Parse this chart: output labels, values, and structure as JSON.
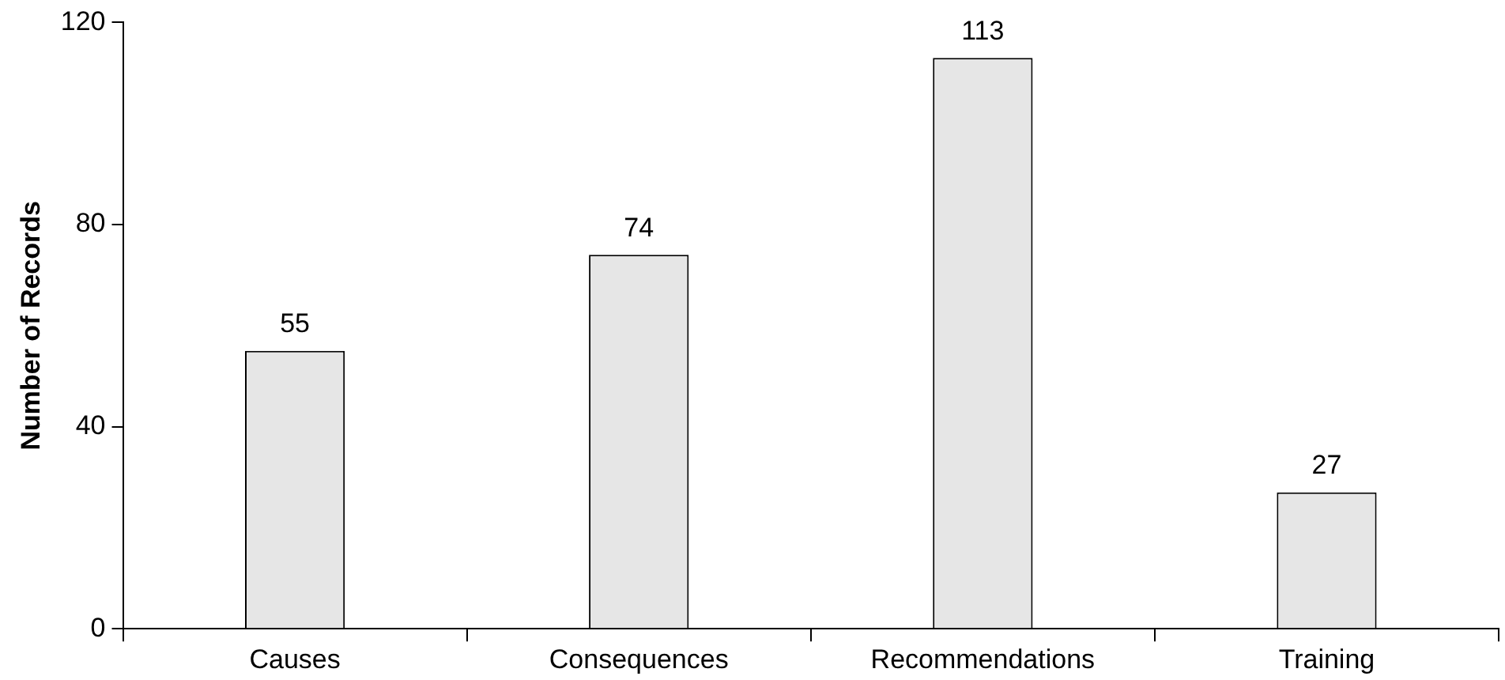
{
  "chart_data": {
    "type": "bar",
    "ylabel": "Number of Records",
    "categories": [
      "Causes",
      "Consequences",
      "Recommendations",
      "Training"
    ],
    "values": [
      55,
      74,
      113,
      27
    ],
    "color": "#e6e6e6",
    "ylim": [
      0,
      120
    ],
    "yticks": [
      0,
      40,
      80,
      120
    ],
    "grid": false,
    "legend": false,
    "data_labels": true
  }
}
